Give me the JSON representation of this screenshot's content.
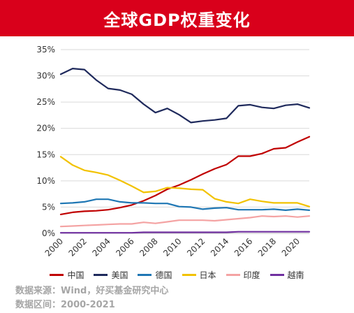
{
  "title": "全球GDP权重变化",
  "source_line": "数据来源：Wind，好买基金研究中心",
  "range_line": "数据区间：2000-2021",
  "colors": {
    "title_bg": "#d9001b",
    "grid": "#d9d9d9",
    "axis": "#bfbfbf"
  },
  "chart_data": {
    "type": "line",
    "x": [
      2000,
      2001,
      2002,
      2003,
      2004,
      2005,
      2006,
      2007,
      2008,
      2009,
      2010,
      2011,
      2012,
      2013,
      2014,
      2015,
      2016,
      2017,
      2018,
      2019,
      2020,
      2021
    ],
    "x_tick_labels": [
      "2000",
      "2002",
      "2004",
      "2006",
      "2008",
      "2010",
      "2012",
      "2014",
      "2016",
      "2018",
      "2020"
    ],
    "y_tick_labels": [
      "0%",
      "5%",
      "10%",
      "15%",
      "20%",
      "25%",
      "30%",
      "35%"
    ],
    "ylim": [
      0,
      35
    ],
    "grid": true,
    "legend_position": "bottom",
    "series": [
      {
        "name": "中国",
        "color": "#c00000",
        "values": [
          3.6,
          4.0,
          4.2,
          4.3,
          4.5,
          4.9,
          5.4,
          6.2,
          7.2,
          8.4,
          9.2,
          10.2,
          11.3,
          12.3,
          13.1,
          14.7,
          14.7,
          15.2,
          16.1,
          16.3,
          17.4,
          18.4
        ]
      },
      {
        "name": "美国",
        "color": "#1f2a5c",
        "values": [
          30.3,
          31.4,
          31.2,
          29.2,
          27.6,
          27.3,
          26.5,
          24.6,
          23.0,
          23.8,
          22.6,
          21.1,
          21.4,
          21.6,
          21.9,
          24.3,
          24.5,
          24.0,
          23.8,
          24.4,
          24.6,
          23.9
        ]
      },
      {
        "name": "德国",
        "color": "#1f77b4",
        "values": [
          5.7,
          5.8,
          6.0,
          6.5,
          6.5,
          6.0,
          5.8,
          5.8,
          5.7,
          5.7,
          5.1,
          5.0,
          4.6,
          4.8,
          4.9,
          4.5,
          4.5,
          4.5,
          4.6,
          4.4,
          4.6,
          4.4
        ]
      },
      {
        "name": "日本",
        "color": "#f2c200",
        "values": [
          14.6,
          13.0,
          12.0,
          11.6,
          11.1,
          10.1,
          9.0,
          7.8,
          8.0,
          8.7,
          8.6,
          8.4,
          8.3,
          6.6,
          6.0,
          5.7,
          6.5,
          6.1,
          5.8,
          5.8,
          5.8,
          5.1
        ]
      },
      {
        "name": "印度",
        "color": "#f4a3a3",
        "values": [
          1.3,
          1.4,
          1.5,
          1.6,
          1.7,
          1.8,
          1.8,
          2.1,
          1.9,
          2.2,
          2.5,
          2.5,
          2.5,
          2.4,
          2.6,
          2.8,
          3.0,
          3.3,
          3.2,
          3.3,
          3.1,
          3.3
        ]
      },
      {
        "name": "越南",
        "color": "#7030a0",
        "values": [
          0.1,
          0.1,
          0.1,
          0.1,
          0.1,
          0.1,
          0.1,
          0.2,
          0.2,
          0.2,
          0.2,
          0.2,
          0.2,
          0.2,
          0.2,
          0.3,
          0.3,
          0.3,
          0.3,
          0.3,
          0.3,
          0.3
        ]
      }
    ]
  }
}
